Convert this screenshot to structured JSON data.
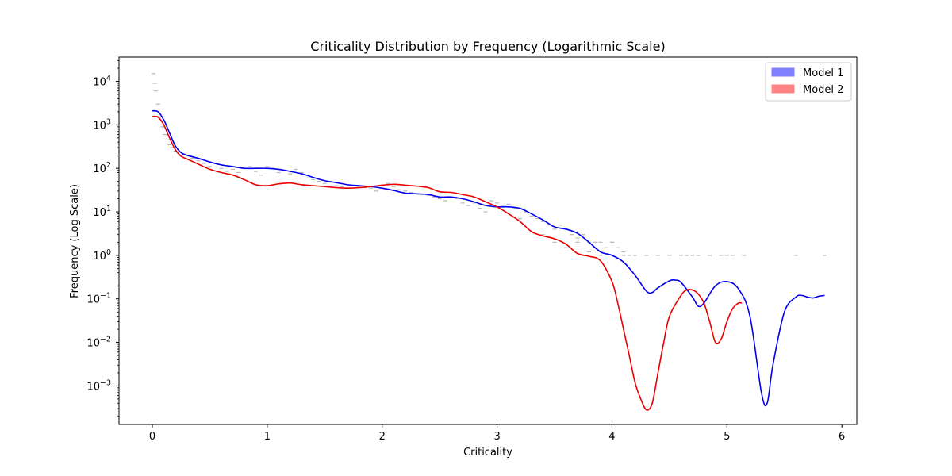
{
  "chart_data": {
    "type": "line",
    "title": "Criticality Distribution by Frequency (Logarithmic Scale)",
    "xlabel": "Criticality",
    "ylabel": "Frequency (Log Scale)",
    "xlim": [
      -0.29,
      6.13
    ],
    "ylim": [
      0.00013,
      36000
    ],
    "yscale": "log",
    "grid": false,
    "legend_position": "top-right",
    "x_ticks": [
      {
        "value": 0,
        "label": "0"
      },
      {
        "value": 1,
        "label": "1"
      },
      {
        "value": 2,
        "label": "2"
      },
      {
        "value": 3,
        "label": "3"
      },
      {
        "value": 4,
        "label": "4"
      },
      {
        "value": 5,
        "label": "5"
      },
      {
        "value": 6,
        "label": "6"
      }
    ],
    "y_ticks": [
      {
        "value": 0.001,
        "base": "10",
        "exp": "−3"
      },
      {
        "value": 0.01,
        "base": "10",
        "exp": "−2"
      },
      {
        "value": 0.1,
        "base": "10",
        "exp": "−1"
      },
      {
        "value": 1,
        "base": "10",
        "exp": "0"
      },
      {
        "value": 10,
        "base": "10",
        "exp": "1"
      },
      {
        "value": 100,
        "base": "10",
        "exp": "2"
      },
      {
        "value": 1000,
        "base": "10",
        "exp": "3"
      },
      {
        "value": 10000,
        "base": "10",
        "exp": "4"
      }
    ],
    "series": [
      {
        "name": "Model 1",
        "color": "#0000ee",
        "legend_fill": "#8080ff",
        "x": [
          0,
          0.05,
          0.1,
          0.15,
          0.2,
          0.25,
          0.3,
          0.4,
          0.5,
          0.6,
          0.7,
          0.8,
          0.9,
          1.0,
          1.1,
          1.2,
          1.3,
          1.4,
          1.5,
          1.6,
          1.7,
          1.8,
          1.9,
          2.0,
          2.1,
          2.2,
          2.3,
          2.4,
          2.5,
          2.6,
          2.7,
          2.8,
          2.9,
          3.0,
          3.1,
          3.2,
          3.3,
          3.4,
          3.5,
          3.6,
          3.7,
          3.8,
          3.9,
          4.0,
          4.1,
          4.2,
          4.3,
          4.35,
          4.4,
          4.5,
          4.55,
          4.6,
          4.7,
          4.75,
          4.8,
          4.9,
          5.0,
          5.1,
          5.2,
          5.3,
          5.35,
          5.4,
          5.5,
          5.6,
          5.65,
          5.7,
          5.75,
          5.8,
          5.85
        ],
        "values": [
          2100,
          2000,
          1300,
          650,
          330,
          230,
          200,
          170,
          140,
          120,
          110,
          100,
          100,
          100,
          95,
          85,
          75,
          62,
          52,
          47,
          42,
          40,
          38,
          35,
          31,
          27,
          26,
          25,
          22,
          22,
          20,
          17,
          14,
          13,
          13,
          12,
          9,
          6.5,
          4.5,
          4,
          3.2,
          2,
          1.2,
          1.0,
          0.7,
          0.35,
          0.15,
          0.14,
          0.18,
          0.26,
          0.27,
          0.24,
          0.11,
          0.068,
          0.08,
          0.2,
          0.25,
          0.17,
          0.04,
          0.0007,
          0.0004,
          0.003,
          0.05,
          0.11,
          0.12,
          0.11,
          0.105,
          0.115,
          0.12
        ]
      },
      {
        "name": "Model 2",
        "color": "#ee0000",
        "legend_fill": "#ff8080",
        "x": [
          0,
          0.05,
          0.1,
          0.15,
          0.2,
          0.25,
          0.3,
          0.4,
          0.5,
          0.6,
          0.7,
          0.8,
          0.9,
          1.0,
          1.1,
          1.2,
          1.3,
          1.4,
          1.5,
          1.6,
          1.7,
          1.8,
          1.9,
          2.0,
          2.1,
          2.2,
          2.3,
          2.4,
          2.5,
          2.6,
          2.7,
          2.8,
          2.9,
          3.0,
          3.1,
          3.2,
          3.3,
          3.4,
          3.5,
          3.6,
          3.7,
          3.8,
          3.9,
          4.0,
          4.05,
          4.1,
          4.15,
          4.2,
          4.25,
          4.3,
          4.35,
          4.4,
          4.45,
          4.5,
          4.6,
          4.65,
          4.7,
          4.75,
          4.8,
          4.85,
          4.9,
          4.95,
          5.0,
          5.05,
          5.1,
          5.13
        ],
        "values": [
          1550,
          1500,
          1000,
          500,
          270,
          190,
          165,
          125,
          95,
          80,
          70,
          55,
          42,
          40,
          44,
          46,
          42,
          40,
          38,
          36,
          35,
          36,
          38,
          41,
          43,
          41,
          39,
          36,
          29,
          28,
          25,
          22,
          17,
          13,
          9,
          6,
          3.5,
          2.8,
          2.4,
          1.8,
          1.1,
          0.95,
          0.75,
          0.25,
          0.08,
          0.02,
          0.005,
          0.0012,
          0.0005,
          0.00028,
          0.0004,
          0.002,
          0.01,
          0.04,
          0.12,
          0.16,
          0.16,
          0.13,
          0.08,
          0.03,
          0.01,
          0.012,
          0.03,
          0.06,
          0.08,
          0.08
        ]
      },
      {
        "name": "",
        "color": "#b8b8b8",
        "marker": "dash",
        "x": [
          0.01,
          0.02,
          0.03,
          0.05,
          0.07,
          0.09,
          0.11,
          0.13,
          0.15,
          0.17,
          0.2,
          0.23,
          0.27,
          0.3,
          0.35,
          0.4,
          0.45,
          0.5,
          0.55,
          0.6,
          0.65,
          0.7,
          0.75,
          0.8,
          0.85,
          0.9,
          0.95,
          1.0,
          1.05,
          1.1,
          1.15,
          1.2,
          1.25,
          1.3,
          1.35,
          1.4,
          1.45,
          1.5,
          1.55,
          1.6,
          1.65,
          1.7,
          1.75,
          1.8,
          1.85,
          1.9,
          1.95,
          2.0,
          2.05,
          2.1,
          2.15,
          2.2,
          2.25,
          2.3,
          2.35,
          2.4,
          2.45,
          2.5,
          2.55,
          2.6,
          2.65,
          2.7,
          2.75,
          2.8,
          2.85,
          2.9,
          2.95,
          3.0,
          3.05,
          3.1,
          3.15,
          3.2,
          3.25,
          3.3,
          3.35,
          3.4,
          3.45,
          3.5,
          3.55,
          3.6,
          3.65,
          3.7,
          3.75,
          3.8,
          3.85,
          3.9,
          3.95,
          4.0,
          4.05,
          4.1,
          4.15,
          4.2,
          3.2,
          3.4,
          3.5,
          3.6,
          3.7,
          3.8,
          3.9,
          4.0,
          4.1,
          4.3,
          4.4,
          4.5,
          4.6,
          4.65,
          4.7,
          4.75,
          4.85,
          4.95,
          5.0,
          5.05,
          5.15,
          5.6,
          5.85
        ],
        "values": [
          15000,
          9000,
          6000,
          3000,
          1500,
          900,
          600,
          450,
          350,
          300,
          250,
          240,
          210,
          200,
          170,
          150,
          130,
          110,
          130,
          100,
          85,
          95,
          80,
          100,
          110,
          85,
          70,
          110,
          100,
          80,
          90,
          75,
          95,
          80,
          60,
          55,
          50,
          45,
          48,
          40,
          38,
          42,
          40,
          38,
          36,
          35,
          30,
          40,
          45,
          38,
          32,
          30,
          28,
          26,
          25,
          24,
          22,
          20,
          18,
          22,
          20,
          16,
          14,
          16,
          12,
          10,
          18,
          16,
          14,
          15,
          12,
          12,
          10,
          8,
          7,
          6,
          5,
          4,
          5,
          4,
          3,
          2.5,
          3,
          2,
          2,
          2,
          1.5,
          2,
          1.5,
          1.2,
          1,
          1,
          7,
          3,
          2,
          1.5,
          2,
          1.2,
          1,
          2,
          1,
          1,
          1,
          1,
          1,
          1,
          1,
          1,
          1,
          1,
          1,
          1,
          1,
          1,
          1
        ]
      }
    ]
  }
}
